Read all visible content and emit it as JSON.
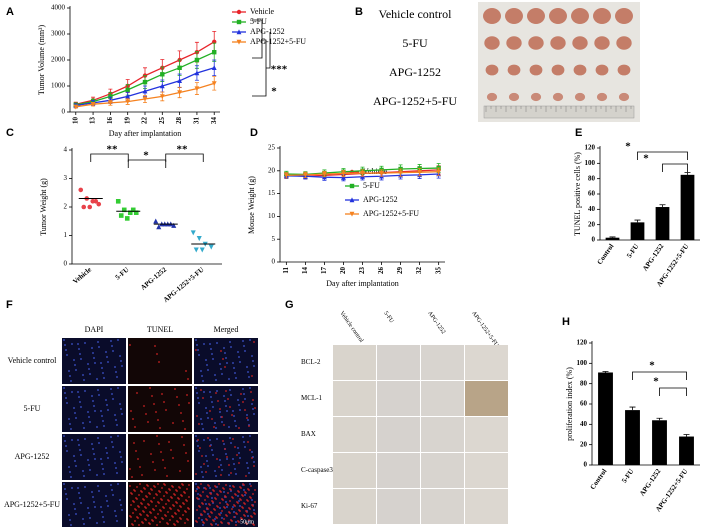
{
  "chart_data": [
    {
      "type": "line",
      "panel_label": "A",
      "y_label": "Tumor Volume (mm³)",
      "x_label": "Day after implantation",
      "x": [
        10,
        13,
        16,
        19,
        22,
        25,
        28,
        31,
        34
      ],
      "xlim": [
        9,
        35
      ],
      "ylim": [
        0,
        4000
      ],
      "yticks": [
        0,
        1000,
        2000,
        3000,
        4000
      ],
      "series": [
        {
          "name": "Vehicle",
          "color": "#e8242a",
          "marker": "circle",
          "values": [
            300,
            450,
            700,
            1000,
            1400,
            1700,
            2000,
            2300,
            2700
          ],
          "errors": [
            80,
            120,
            180,
            250,
            300,
            320,
            350,
            380,
            400
          ]
        },
        {
          "name": "5-FU",
          "color": "#22b024",
          "marker": "square",
          "values": [
            280,
            400,
            600,
            850,
            1150,
            1450,
            1700,
            2000,
            2300
          ],
          "errors": [
            70,
            100,
            150,
            200,
            250,
            280,
            300,
            320,
            350
          ]
        },
        {
          "name": "APG-1252",
          "color": "#2233dd",
          "marker": "triangle",
          "values": [
            250,
            350,
            450,
            600,
            800,
            1000,
            1200,
            1500,
            1700
          ],
          "errors": [
            60,
            90,
            120,
            160,
            200,
            230,
            260,
            280,
            300
          ]
        },
        {
          "name": "APG-1252+5-FU",
          "color": "#f58220",
          "marker": "triangle-down",
          "values": [
            200,
            300,
            350,
            400,
            500,
            600,
            750,
            900,
            1100
          ],
          "errors": [
            50,
            70,
            90,
            110,
            140,
            170,
            200,
            230,
            260
          ]
        }
      ],
      "annotations": [
        "*",
        "***"
      ]
    },
    {
      "type": "dot",
      "panel_label": "C",
      "y_label": "Tumor Weight (g)",
      "categories": [
        "Vehicle",
        "5-FU",
        "APG-1252",
        "APG-1252+5-FU"
      ],
      "colors": [
        "#e8424a",
        "#33cc33",
        "#2233aa",
        "#33aacc"
      ],
      "markers": [
        "circle",
        "square",
        "triangle",
        "triangle-down"
      ],
      "values": [
        [
          2.6,
          2.3,
          2.2,
          2.1,
          2.0,
          2.0,
          2.2
        ],
        [
          2.2,
          1.9,
          1.8,
          1.8,
          1.7,
          1.6,
          1.9
        ],
        [
          1.5,
          1.4,
          1.4,
          1.35,
          1.3,
          1.4,
          1.4
        ],
        [
          1.1,
          0.9,
          0.7,
          0.6,
          0.5,
          0.5
        ]
      ],
      "means": [
        2.3,
        1.85,
        1.4,
        0.7
      ],
      "ylim": [
        0,
        4
      ],
      "yticks": [
        0,
        1,
        2,
        3,
        4
      ],
      "annotations": [
        "**",
        "*",
        "**"
      ]
    },
    {
      "type": "line",
      "panel_label": "D",
      "y_label": "Mouse Weight (g)",
      "x_label": "Day after implantation",
      "x": [
        11,
        14,
        17,
        20,
        23,
        26,
        29,
        32,
        35
      ],
      "xlim": [
        10,
        36
      ],
      "ylim": [
        0,
        25
      ],
      "yticks": [
        0,
        5,
        10,
        15,
        20,
        25
      ],
      "series": [
        {
          "name": "Vehicle",
          "color": "#e8242a",
          "marker": "circle",
          "values": [
            19.0,
            18.8,
            19.0,
            19.2,
            19.4,
            19.6,
            19.8,
            20.0,
            20.2
          ],
          "errors": [
            0.6,
            0.6,
            0.7,
            0.7,
            0.8,
            0.8,
            0.8,
            0.9,
            0.9
          ]
        },
        {
          "name": "5-FU",
          "color": "#22b024",
          "marker": "square",
          "values": [
            19.3,
            19.2,
            19.5,
            19.8,
            20.0,
            20.2,
            20.4,
            20.5,
            20.6
          ],
          "errors": [
            0.6,
            0.6,
            0.7,
            0.7,
            0.8,
            0.8,
            0.9,
            0.9,
            1.0
          ]
        },
        {
          "name": "APG-1252",
          "color": "#2233dd",
          "marker": "triangle",
          "values": [
            18.9,
            18.8,
            18.6,
            18.5,
            18.7,
            18.8,
            19.0,
            19.1,
            19.3
          ],
          "errors": [
            0.6,
            0.6,
            0.7,
            0.7,
            0.7,
            0.8,
            0.8,
            0.8,
            0.9
          ]
        },
        {
          "name": "APG-1252+5-FU",
          "color": "#f58220",
          "marker": "triangle-down",
          "values": [
            19.0,
            19.1,
            19.3,
            19.4,
            19.5,
            19.5,
            19.6,
            19.7,
            19.8
          ],
          "errors": [
            0.6,
            0.6,
            0.6,
            0.7,
            0.7,
            0.7,
            0.8,
            0.8,
            0.8
          ]
        }
      ]
    },
    {
      "type": "bar",
      "panel_label": "E",
      "y_label": "TUNEL positive cells (%)",
      "categories": [
        "Control",
        "5-FU",
        "APG-1252",
        "APG-1252+5-FU"
      ],
      "values": [
        3,
        23,
        43,
        85
      ],
      "errors": [
        1,
        3,
        3,
        3
      ],
      "color": "#000000",
      "ylim": [
        0,
        120
      ],
      "yticks": [
        0,
        20,
        40,
        60,
        80,
        100,
        120
      ],
      "annotations": [
        "*",
        "*"
      ]
    },
    {
      "type": "bar",
      "panel_label": "H",
      "y_label": "proliferation index (%)",
      "categories": [
        "Control",
        "5-FU",
        "APG-1252",
        "APG-1252+5-FU"
      ],
      "values": [
        91,
        54,
        44,
        28
      ],
      "errors": [
        1,
        3,
        2,
        2
      ],
      "color": "#000000",
      "ylim": [
        0,
        120
      ],
      "yticks": [
        0,
        20,
        40,
        60,
        80,
        100,
        120
      ],
      "annotations": [
        "*",
        "*"
      ]
    }
  ],
  "photos": [
    {
      "panel_label": "B",
      "row_labels": [
        "Vehicle control",
        "5-FU",
        "APG-1252",
        "APG-1252+5-FU"
      ]
    },
    {
      "panel_label": "F",
      "column_labels": [
        "DAPI",
        "TUNEL",
        "Merged"
      ],
      "row_labels": [
        "Vehicle control",
        "5-FU",
        "APG-1252",
        "APG-1252+5-FU"
      ],
      "scale_label": "50μm"
    },
    {
      "panel_label": "G",
      "column_labels": [
        "Vehicle control",
        "5-FU",
        "APG-1252",
        "APG-1252+5-FU"
      ],
      "row_labels": [
        "BCL-2",
        "MCL-1",
        "BAX",
        "C-caspase3",
        "Ki-67"
      ]
    }
  ]
}
